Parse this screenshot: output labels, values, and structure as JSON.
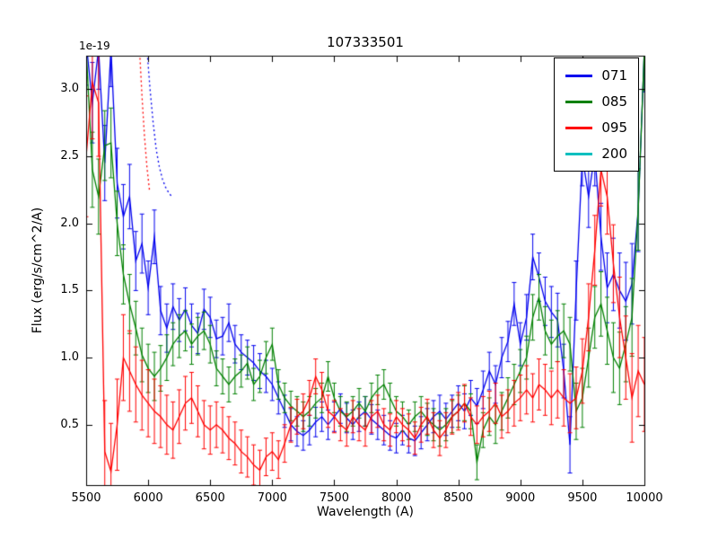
{
  "chart_data": {
    "type": "line",
    "title": "107333501",
    "xlabel": "Wavelength (A)",
    "ylabel": "Flux (erg/s/cm^2/A)",
    "y_offset_label": "1e-19",
    "grid": false,
    "legend_position": "upper right",
    "xlim": [
      5500,
      10000
    ],
    "ylim": [
      0.05,
      3.25
    ],
    "xticks": [
      5500,
      6000,
      6500,
      7000,
      7500,
      8000,
      8500,
      9000,
      9500,
      10000
    ],
    "yticks": [
      0.5,
      1.0,
      1.5,
      2.0,
      2.5,
      3.0
    ],
    "x": [
      5500,
      5550,
      5600,
      5650,
      5700,
      5750,
      5800,
      5850,
      5900,
      5950,
      6000,
      6050,
      6100,
      6150,
      6200,
      6250,
      6300,
      6350,
      6400,
      6450,
      6500,
      6550,
      6600,
      6650,
      6700,
      6750,
      6800,
      6850,
      6900,
      6950,
      7000,
      7050,
      7100,
      7150,
      7200,
      7250,
      7300,
      7350,
      7400,
      7450,
      7500,
      7550,
      7600,
      7650,
      7700,
      7750,
      7800,
      7850,
      7900,
      7950,
      8000,
      8050,
      8100,
      8150,
      8200,
      8250,
      8300,
      8350,
      8400,
      8450,
      8500,
      8550,
      8600,
      8650,
      8700,
      8750,
      8800,
      8850,
      8900,
      8950,
      9000,
      9050,
      9100,
      9150,
      9200,
      9250,
      9300,
      9350,
      9400,
      9450,
      9500,
      9550,
      9600,
      9650,
      9700,
      9750,
      9800,
      9850,
      9900,
      9950,
      10000
    ],
    "series": [
      {
        "name": "071",
        "color": "#0000ee",
        "values": [
          3.35,
          2.9,
          3.3,
          2.45,
          3.3,
          2.3,
          2.05,
          2.2,
          1.72,
          1.85,
          1.52,
          1.9,
          1.35,
          1.22,
          1.38,
          1.28,
          1.36,
          1.24,
          1.18,
          1.36,
          1.3,
          1.14,
          1.16,
          1.26,
          1.1,
          1.04,
          1.0,
          0.96,
          0.9,
          0.86,
          0.8,
          0.7,
          0.6,
          0.5,
          0.45,
          0.42,
          0.46,
          0.52,
          0.56,
          0.5,
          0.56,
          0.62,
          0.55,
          0.5,
          0.56,
          0.6,
          0.54,
          0.5,
          0.46,
          0.42,
          0.4,
          0.46,
          0.4,
          0.38,
          0.44,
          0.5,
          0.56,
          0.6,
          0.54,
          0.6,
          0.66,
          0.6,
          0.7,
          0.64,
          0.76,
          0.9,
          0.8,
          1.0,
          1.12,
          1.4,
          1.1,
          1.3,
          1.75,
          1.6,
          1.42,
          1.34,
          1.28,
          0.9,
          0.35,
          1.5,
          2.5,
          2.2,
          2.52,
          1.9,
          1.52,
          1.62,
          1.5,
          1.42,
          1.55,
          2.1,
          3.3
        ],
        "yerr": [
          0.32,
          0.3,
          0.3,
          0.28,
          0.28,
          0.26,
          0.24,
          0.24,
          0.22,
          0.22,
          0.2,
          0.2,
          0.18,
          0.18,
          0.17,
          0.16,
          0.16,
          0.16,
          0.15,
          0.15,
          0.15,
          0.14,
          0.14,
          0.14,
          0.14,
          0.13,
          0.13,
          0.13,
          0.13,
          0.12,
          0.12,
          0.12,
          0.12,
          0.12,
          0.11,
          0.11,
          0.11,
          0.11,
          0.11,
          0.11,
          0.11,
          0.11,
          0.11,
          0.11,
          0.11,
          0.11,
          0.11,
          0.11,
          0.11,
          0.11,
          0.11,
          0.11,
          0.11,
          0.11,
          0.12,
          0.12,
          0.12,
          0.12,
          0.12,
          0.12,
          0.13,
          0.13,
          0.13,
          0.13,
          0.14,
          0.14,
          0.14,
          0.15,
          0.15,
          0.16,
          0.16,
          0.17,
          0.17,
          0.18,
          0.18,
          0.19,
          0.2,
          0.2,
          0.21,
          0.22,
          0.22,
          0.23,
          0.24,
          0.25,
          0.26,
          0.27,
          0.28,
          0.29,
          0.3,
          0.31,
          0.32
        ]
      },
      {
        "name": "085",
        "color": "#008000",
        "values": [
          3.3,
          2.4,
          2.2,
          2.58,
          2.6,
          2.0,
          1.62,
          1.4,
          1.22,
          1.02,
          0.92,
          0.86,
          0.92,
          1.0,
          1.1,
          1.16,
          1.2,
          1.1,
          1.16,
          1.2,
          1.1,
          0.92,
          0.86,
          0.8,
          0.86,
          0.9,
          0.96,
          0.8,
          0.86,
          1.0,
          1.1,
          0.8,
          0.7,
          0.64,
          0.6,
          0.56,
          0.6,
          0.66,
          0.7,
          0.86,
          0.7,
          0.6,
          0.56,
          0.6,
          0.66,
          0.6,
          0.7,
          0.76,
          0.8,
          0.7,
          0.6,
          0.56,
          0.5,
          0.56,
          0.6,
          0.54,
          0.5,
          0.46,
          0.5,
          0.56,
          0.6,
          0.66,
          0.6,
          0.22,
          0.46,
          0.56,
          0.5,
          0.6,
          0.7,
          0.8,
          0.9,
          1.0,
          1.3,
          1.45,
          1.2,
          1.1,
          1.16,
          1.2,
          1.1,
          0.6,
          0.7,
          1.0,
          1.3,
          1.4,
          1.2,
          1.0,
          0.92,
          1.1,
          1.3,
          2.1,
          3.3
        ],
        "yerr": [
          0.3,
          0.28,
          0.28,
          0.26,
          0.26,
          0.24,
          0.22,
          0.22,
          0.2,
          0.2,
          0.18,
          0.18,
          0.17,
          0.17,
          0.16,
          0.16,
          0.15,
          0.15,
          0.14,
          0.14,
          0.14,
          0.13,
          0.13,
          0.13,
          0.13,
          0.12,
          0.12,
          0.12,
          0.12,
          0.12,
          0.12,
          0.11,
          0.11,
          0.11,
          0.11,
          0.11,
          0.11,
          0.11,
          0.11,
          0.11,
          0.11,
          0.11,
          0.11,
          0.11,
          0.11,
          0.11,
          0.11,
          0.11,
          0.11,
          0.11,
          0.11,
          0.11,
          0.11,
          0.11,
          0.11,
          0.12,
          0.12,
          0.12,
          0.12,
          0.12,
          0.12,
          0.13,
          0.13,
          0.13,
          0.13,
          0.14,
          0.14,
          0.14,
          0.15,
          0.15,
          0.16,
          0.16,
          0.17,
          0.17,
          0.18,
          0.18,
          0.19,
          0.2,
          0.2,
          0.21,
          0.22,
          0.22,
          0.23,
          0.24,
          0.25,
          0.26,
          0.27,
          0.28,
          0.29,
          0.3,
          0.31
        ]
      },
      {
        "name": "095",
        "color": "#ff0000",
        "values": [
          2.5,
          3.05,
          2.9,
          0.3,
          0.15,
          0.5,
          1.0,
          0.9,
          0.8,
          0.72,
          0.66,
          0.6,
          0.56,
          0.5,
          0.46,
          0.56,
          0.66,
          0.7,
          0.6,
          0.5,
          0.46,
          0.5,
          0.46,
          0.4,
          0.36,
          0.3,
          0.26,
          0.2,
          0.16,
          0.26,
          0.3,
          0.24,
          0.36,
          0.5,
          0.56,
          0.6,
          0.7,
          0.86,
          0.76,
          0.6,
          0.56,
          0.5,
          0.46,
          0.56,
          0.5,
          0.46,
          0.56,
          0.6,
          0.5,
          0.46,
          0.56,
          0.5,
          0.46,
          0.4,
          0.5,
          0.56,
          0.46,
          0.4,
          0.46,
          0.56,
          0.6,
          0.66,
          0.56,
          0.5,
          0.56,
          0.6,
          0.66,
          0.56,
          0.6,
          0.66,
          0.7,
          0.76,
          0.7,
          0.8,
          0.76,
          0.7,
          0.76,
          0.7,
          0.66,
          0.7,
          0.9,
          1.3,
          1.8,
          2.4,
          2.2,
          1.7,
          1.3,
          1.0,
          0.7,
          0.9,
          0.8
        ],
        "yerr": [
          0.45,
          0.42,
          0.4,
          0.38,
          0.36,
          0.34,
          0.32,
          0.3,
          0.28,
          0.26,
          0.25,
          0.24,
          0.23,
          0.22,
          0.21,
          0.2,
          0.2,
          0.19,
          0.19,
          0.18,
          0.18,
          0.17,
          0.17,
          0.16,
          0.16,
          0.16,
          0.15,
          0.15,
          0.15,
          0.14,
          0.14,
          0.14,
          0.14,
          0.13,
          0.13,
          0.13,
          0.13,
          0.13,
          0.13,
          0.12,
          0.12,
          0.12,
          0.12,
          0.12,
          0.12,
          0.12,
          0.12,
          0.12,
          0.12,
          0.12,
          0.12,
          0.12,
          0.12,
          0.12,
          0.13,
          0.13,
          0.13,
          0.13,
          0.13,
          0.13,
          0.14,
          0.14,
          0.14,
          0.14,
          0.15,
          0.15,
          0.15,
          0.16,
          0.16,
          0.17,
          0.17,
          0.18,
          0.18,
          0.19,
          0.19,
          0.2,
          0.21,
          0.21,
          0.22,
          0.23,
          0.24,
          0.25,
          0.26,
          0.27,
          0.28,
          0.29,
          0.3,
          0.31,
          0.33,
          0.34,
          0.35
        ]
      },
      {
        "name": "200",
        "color": "#00bfbf",
        "values": [],
        "yerr": []
      }
    ],
    "dotted_segments": [
      {
        "color": "#ff0000",
        "x": [
          5930,
          5950,
          5970,
          5990,
          6010
        ],
        "y": [
          3.3,
          2.95,
          2.65,
          2.42,
          2.25
        ]
      },
      {
        "color": "#0000ee",
        "x": [
          5990,
          6015,
          6040,
          6065,
          6090,
          6115,
          6140,
          6165,
          6190
        ],
        "y": [
          3.3,
          3.0,
          2.75,
          2.55,
          2.42,
          2.33,
          2.27,
          2.23,
          2.2
        ]
      }
    ]
  }
}
